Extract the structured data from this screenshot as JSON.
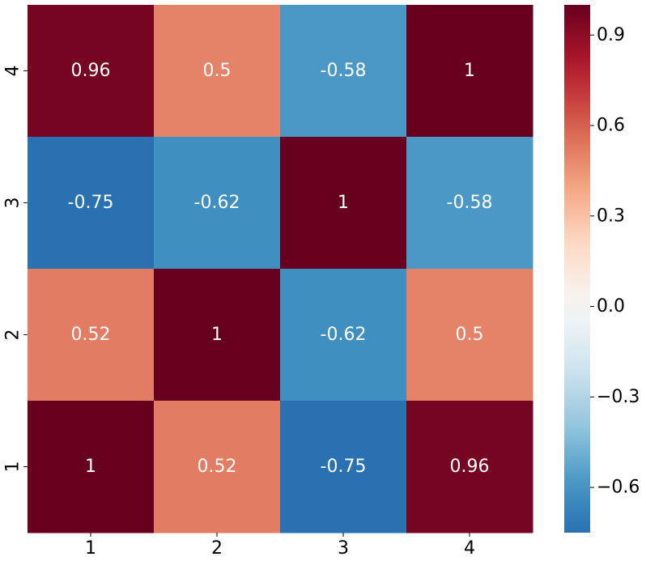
{
  "chart_data": {
    "type": "heatmap",
    "title": "",
    "xlabel": "",
    "ylabel": "",
    "x_categories": [
      "1",
      "2",
      "3",
      "4"
    ],
    "y_categories_top_to_bottom": [
      "4",
      "3",
      "2",
      "1"
    ],
    "values_top_to_bottom": [
      [
        0.96,
        0.5,
        -0.58,
        1
      ],
      [
        -0.75,
        -0.62,
        1,
        -0.58
      ],
      [
        0.52,
        1,
        -0.62,
        0.5
      ],
      [
        1,
        0.52,
        -0.75,
        0.96
      ]
    ],
    "annotations": [
      [
        "0.96",
        "0.5",
        "-0.58",
        "1"
      ],
      [
        "-0.75",
        "-0.62",
        "1",
        "-0.58"
      ],
      [
        "0.52",
        "1",
        "-0.62",
        "0.5"
      ],
      [
        "1",
        "0.52",
        "-0.75",
        "0.96"
      ]
    ],
    "colormap": "RdBu_r",
    "color_range": [
      -0.75,
      1
    ],
    "colorbar_ticks": [
      "0.9",
      "0.6",
      "0.3",
      "0.0",
      "−0.3",
      "−0.6"
    ],
    "colorbar_tick_values": [
      0.9,
      0.6,
      0.3,
      0.0,
      -0.3,
      -0.6
    ],
    "grid": false
  }
}
